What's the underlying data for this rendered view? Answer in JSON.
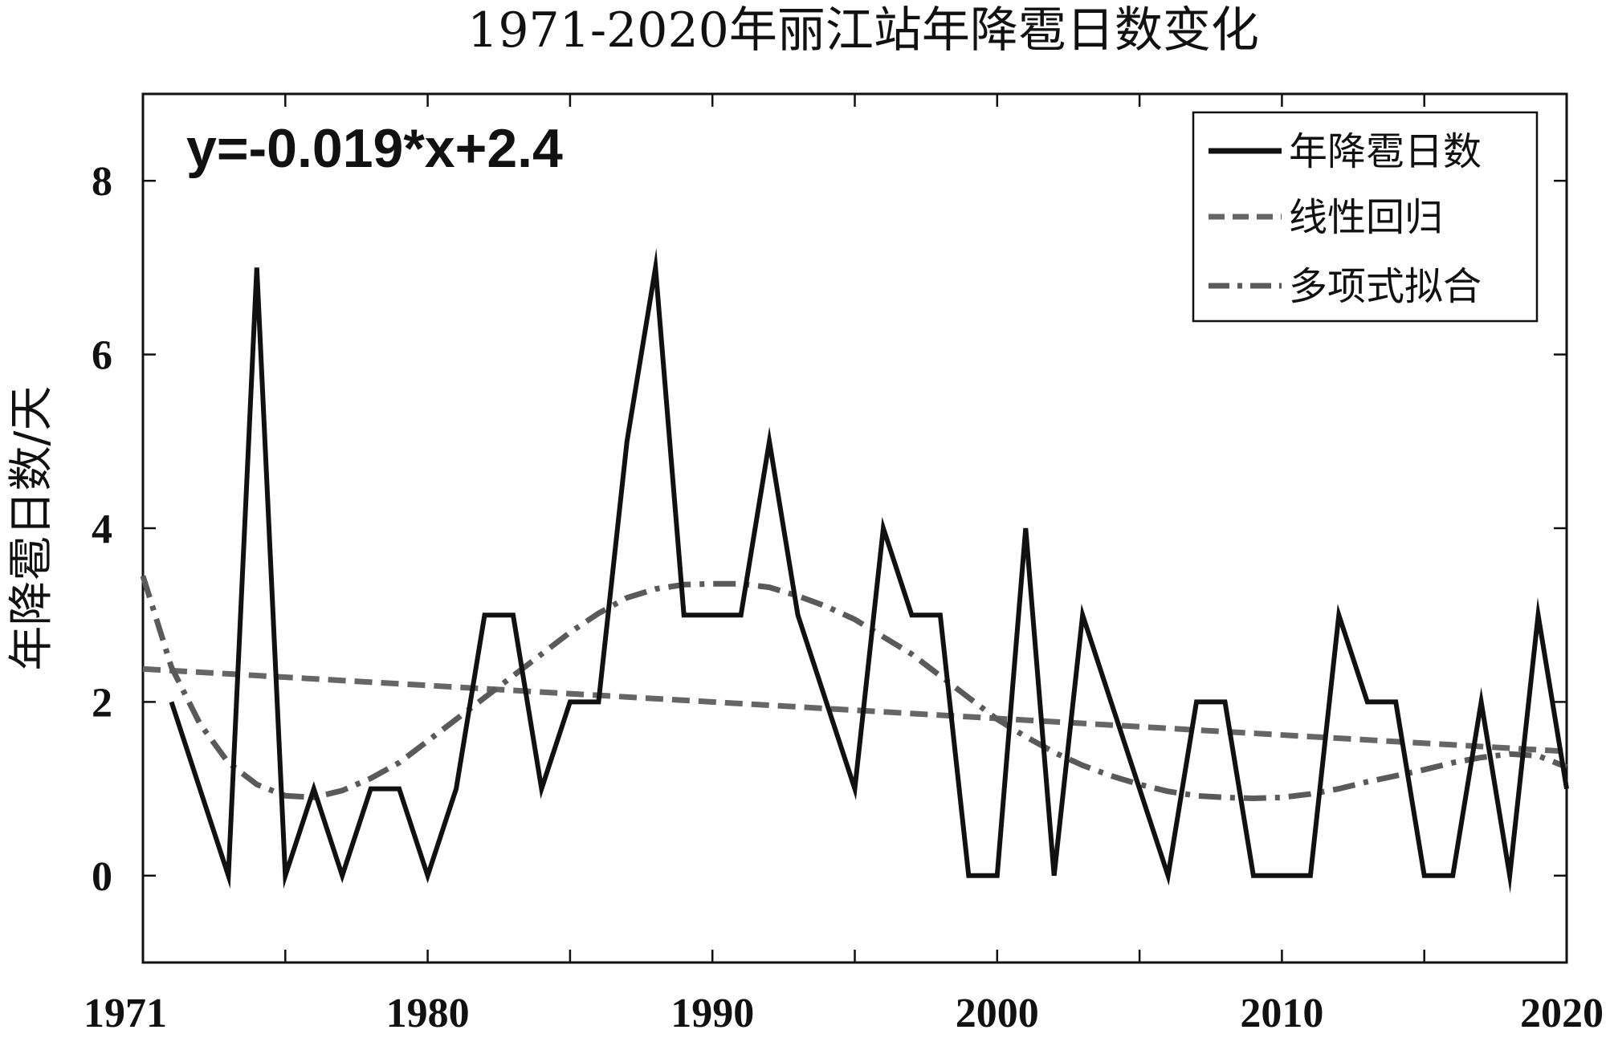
{
  "chart_data": {
    "type": "line",
    "title": "1971-2020年丽江站年降雹日数变化",
    "xlabel": "",
    "ylabel": "年降雹日数/天",
    "xlim": [
      1970,
      2020
    ],
    "ylim": [
      -1,
      9
    ],
    "xticks": [
      1970,
      1980,
      1990,
      2000,
      2010,
      2020
    ],
    "xtick_labels": [
      "1971",
      "1980",
      "1990",
      "2000",
      "2010",
      "2020"
    ],
    "yticks": [
      0,
      2,
      4,
      6,
      8
    ],
    "ytick_labels": [
      "0",
      "2",
      "4",
      "6",
      "8"
    ],
    "annotation": "y=-0.019*x+2.4",
    "legend_position": "top-right",
    "colors": {
      "observed": "#111111",
      "linear": "#666666",
      "poly": "#5a5a5a"
    },
    "series": [
      {
        "name": "年降雹日数",
        "style": "solid",
        "x": [
          1971,
          1972,
          1973,
          1974,
          1975,
          1976,
          1977,
          1978,
          1979,
          1980,
          1981,
          1982,
          1983,
          1984,
          1985,
          1986,
          1987,
          1988,
          1989,
          1990,
          1991,
          1992,
          1993,
          1994,
          1995,
          1996,
          1997,
          1998,
          1999,
          2000,
          2001,
          2002,
          2003,
          2004,
          2005,
          2006,
          2007,
          2008,
          2009,
          2010,
          2011,
          2012,
          2013,
          2014,
          2015,
          2016,
          2017,
          2018,
          2019,
          2020
        ],
        "values": [
          2,
          1,
          0,
          7,
          0,
          1,
          0,
          1,
          1,
          0,
          1,
          3,
          3,
          1,
          2,
          2,
          5,
          7,
          3,
          3,
          3,
          5,
          3,
          2,
          1,
          4,
          3,
          3,
          0,
          0,
          4,
          0,
          3,
          2,
          1,
          0,
          2,
          2,
          0,
          0,
          0,
          3,
          2,
          2,
          0,
          0,
          2,
          0,
          3,
          1
        ]
      },
      {
        "name": "线性回归",
        "style": "dashed",
        "x": [
          1970,
          2020
        ],
        "values": [
          2.38,
          1.43
        ]
      },
      {
        "name": "多项式拟合",
        "style": "dashdot",
        "x": [
          1970,
          1971,
          1972,
          1973,
          1974,
          1975,
          1976,
          1977,
          1978,
          1979,
          1980,
          1981,
          1982,
          1983,
          1984,
          1985,
          1986,
          1987,
          1988,
          1989,
          1990,
          1991,
          1992,
          1993,
          1994,
          1995,
          1996,
          1997,
          1998,
          1999,
          2000,
          2001,
          2002,
          2003,
          2004,
          2005,
          2006,
          2007,
          2008,
          2009,
          2010,
          2011,
          2012,
          2013,
          2014,
          2015,
          2016,
          2017,
          2018,
          2019,
          2020
        ],
        "values": [
          3.45,
          2.4,
          1.75,
          1.3,
          1.05,
          0.92,
          0.9,
          0.98,
          1.12,
          1.3,
          1.55,
          1.8,
          2.05,
          2.3,
          2.55,
          2.8,
          3.02,
          3.2,
          3.3,
          3.35,
          3.36,
          3.36,
          3.32,
          3.22,
          3.1,
          2.95,
          2.75,
          2.55,
          2.3,
          2.05,
          1.8,
          1.6,
          1.42,
          1.27,
          1.15,
          1.05,
          0.97,
          0.92,
          0.9,
          0.89,
          0.9,
          0.94,
          1.0,
          1.08,
          1.15,
          1.22,
          1.3,
          1.36,
          1.4,
          1.38,
          1.25
        ]
      }
    ]
  }
}
